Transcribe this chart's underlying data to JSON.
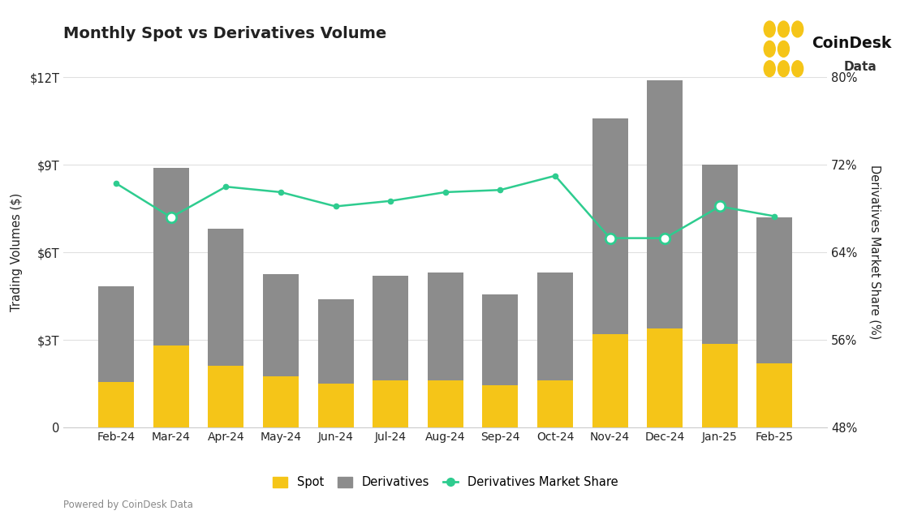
{
  "months": [
    "Feb-24",
    "Mar-24",
    "Apr-24",
    "May-24",
    "Jun-24",
    "Jul-24",
    "Aug-24",
    "Sep-24",
    "Oct-24",
    "Nov-24",
    "Dec-24",
    "Jan-25",
    "Feb-25"
  ],
  "spot": [
    1.55,
    2.8,
    2.1,
    1.75,
    1.5,
    1.6,
    1.6,
    1.45,
    1.6,
    3.2,
    3.4,
    2.85,
    2.2
  ],
  "derivatives": [
    3.3,
    6.1,
    4.7,
    3.5,
    2.9,
    3.6,
    3.7,
    3.1,
    3.7,
    7.4,
    8.5,
    6.15,
    5.0
  ],
  "deriv_share": [
    70.3,
    67.2,
    70.0,
    69.5,
    68.2,
    68.7,
    69.5,
    69.7,
    71.0,
    65.3,
    65.3,
    68.2,
    67.3
  ],
  "title": "Monthly Spot vs Derivatives Volume",
  "ylabel_left": "Trading Volumes ($)",
  "ylabel_right": "Derivatives Market Share (%)",
  "ylim_left": [
    0,
    12
  ],
  "ylim_right": [
    48,
    80
  ],
  "yticks_left": [
    0,
    3,
    6,
    9,
    12
  ],
  "yticks_left_labels": [
    "0",
    "$3T",
    "$6T",
    "$9T",
    "$12T"
  ],
  "yticks_right": [
    48,
    56,
    64,
    72,
    80
  ],
  "yticks_right_labels": [
    "48%",
    "56%",
    "64%",
    "72%",
    "80%"
  ],
  "bar_color_spot": "#F5C518",
  "bar_color_deriv": "#8C8C8C",
  "line_color": "#2ECC8F",
  "open_circle_idx": [
    1,
    9,
    10,
    11
  ],
  "bg_color": "#FFFFFF",
  "footer_text": "Powered by CoinDesk Data",
  "legend_labels": [
    "Spot",
    "Derivatives",
    "Derivatives Market Share"
  ],
  "text_color": "#222222",
  "grid_color": "#E0E0E0",
  "spine_color": "#CCCCCC"
}
